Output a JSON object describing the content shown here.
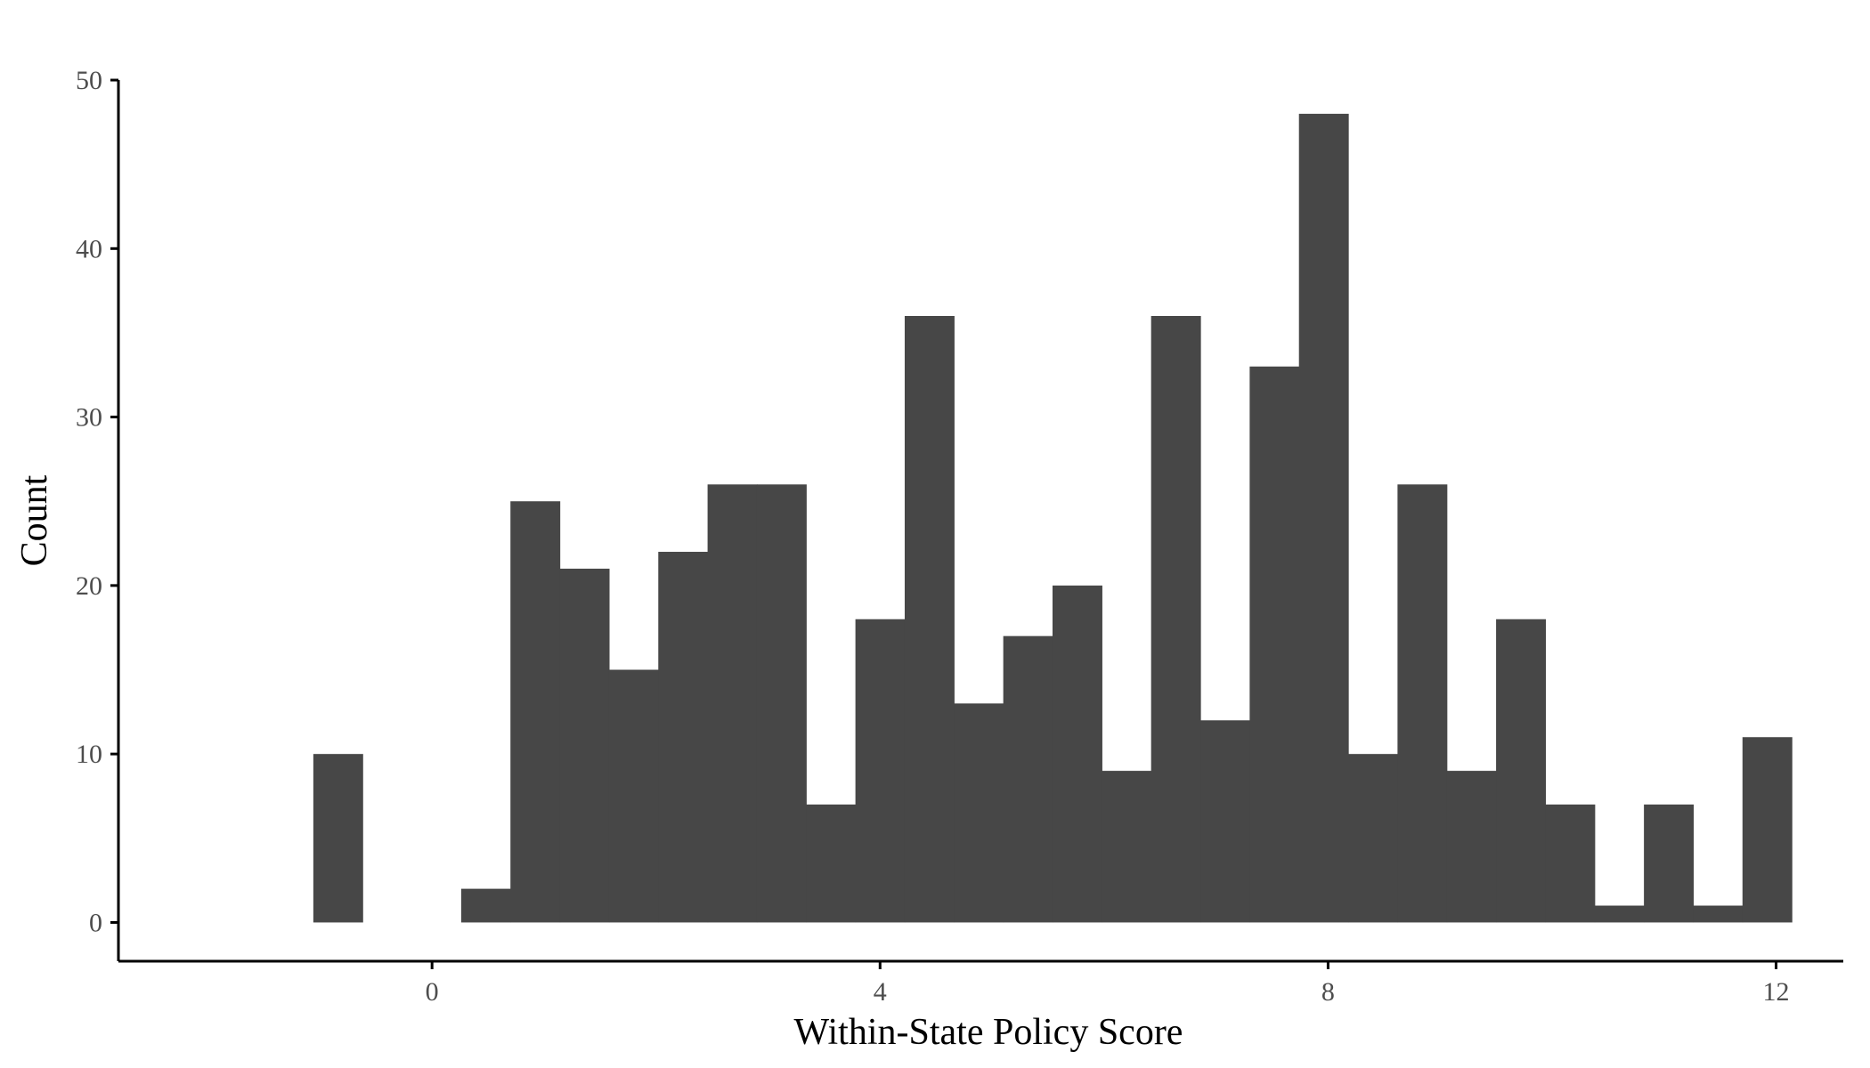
{
  "chart_data": {
    "type": "bar",
    "title": "",
    "xlabel": "Within-State Policy Score",
    "ylabel": "Count",
    "bin_width": 0.44,
    "bins": [
      {
        "x_start": -1.06,
        "x_end": -0.62,
        "count": 10
      },
      {
        "x_start": -0.62,
        "x_end": -0.18,
        "count": 0
      },
      {
        "x_start": -0.18,
        "x_end": 0.26,
        "count": 0
      },
      {
        "x_start": 0.26,
        "x_end": 0.7,
        "count": 2
      },
      {
        "x_start": 0.7,
        "x_end": 1.14,
        "count": 25
      },
      {
        "x_start": 1.14,
        "x_end": 1.58,
        "count": 21
      },
      {
        "x_start": 1.58,
        "x_end": 2.02,
        "count": 15
      },
      {
        "x_start": 2.02,
        "x_end": 2.46,
        "count": 22
      },
      {
        "x_start": 2.46,
        "x_end": 2.9,
        "count": 26
      },
      {
        "x_start": 2.9,
        "x_end": 3.34,
        "count": 26
      },
      {
        "x_start": 3.34,
        "x_end": 3.78,
        "count": 7
      },
      {
        "x_start": 3.78,
        "x_end": 4.22,
        "count": 18
      },
      {
        "x_start": 4.22,
        "x_end": 4.66,
        "count": 36
      },
      {
        "x_start": 4.66,
        "x_end": 5.1,
        "count": 13
      },
      {
        "x_start": 5.1,
        "x_end": 5.54,
        "count": 17
      },
      {
        "x_start": 5.54,
        "x_end": 5.98,
        "count": 20
      },
      {
        "x_start": 5.98,
        "x_end": 6.42,
        "count": 9
      },
      {
        "x_start": 6.42,
        "x_end": 6.86,
        "count": 36
      },
      {
        "x_start": 6.86,
        "x_end": 7.3,
        "count": 12
      },
      {
        "x_start": 7.3,
        "x_end": 7.74,
        "count": 33
      },
      {
        "x_start": 7.74,
        "x_end": 8.18,
        "count": 48
      },
      {
        "x_start": 8.18,
        "x_end": 8.62,
        "count": 10
      },
      {
        "x_start": 8.62,
        "x_end": 9.06,
        "count": 26
      },
      {
        "x_start": 9.06,
        "x_end": 9.5,
        "count": 9
      },
      {
        "x_start": 9.5,
        "x_end": 9.94,
        "count": 18
      },
      {
        "x_start": 9.94,
        "x_end": 10.38,
        "count": 7
      },
      {
        "x_start": 10.38,
        "x_end": 10.82,
        "count": 1
      },
      {
        "x_start": 10.82,
        "x_end": 11.26,
        "count": 7
      },
      {
        "x_start": 11.26,
        "x_end": 11.7,
        "count": 1
      },
      {
        "x_start": 11.7,
        "x_end": 12.14,
        "count": 11
      }
    ],
    "xlim": [
      -2.8,
      12.6
    ],
    "ylim": [
      -2.3,
      50
    ],
    "x_ticks": [
      0,
      4,
      8,
      12
    ],
    "y_ticks": [
      0,
      10,
      20,
      30,
      40,
      50
    ],
    "bar_color": "#474747",
    "axis_color": "#000000",
    "tick_label_color": "#4d4d4d",
    "grid": false,
    "legend": "none"
  }
}
